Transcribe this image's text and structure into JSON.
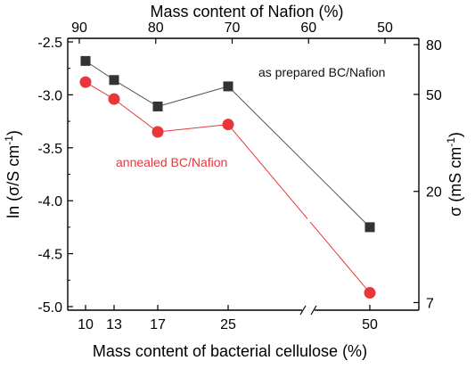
{
  "chart_data": {
    "type": "line",
    "top_axis_title": "Mass content of Nafion (%)",
    "bottom_axis_title": "Mass content of bacterial cellulose (%)",
    "left_axis_title_prefix": "ln (",
    "left_axis_title_sigma": "σ",
    "left_axis_title_unit": "/S cm",
    "left_axis_title_exp": "-1",
    "left_axis_title_suffix": ")",
    "right_axis_title_prefix": "σ (mS cm",
    "right_axis_title_exp": "-1",
    "right_axis_title_suffix": ")",
    "categories": [
      "10",
      "13",
      "17",
      "25",
      "50"
    ],
    "x_nafion": [
      90,
      87,
      83,
      75,
      50
    ],
    "top_ticks": [
      "90",
      "80",
      "70",
      "60",
      "50"
    ],
    "top_tick_values": [
      90,
      80,
      70,
      60,
      50
    ],
    "ylim": [
      -5.0,
      -2.5
    ],
    "y_ticks": [
      -2.5,
      -3.0,
      -3.5,
      -4.0,
      -4.5,
      -5.0
    ],
    "y_tick_labels": [
      "-2.5",
      "-3.0",
      "-3.5",
      "-4.0",
      "-4.5",
      "-5.0"
    ],
    "right_ticks": [
      "80",
      "50",
      "20",
      "7"
    ],
    "right_tick_values": [
      80,
      50,
      20,
      7
    ],
    "axis_break": "between 25 and 50",
    "grid": false,
    "series": [
      {
        "name": "as prepared BC/Nafion",
        "color": "#333333",
        "line_color": "#555555",
        "marker": "square",
        "values": [
          -2.68,
          -2.86,
          -3.11,
          -2.92,
          -4.25
        ]
      },
      {
        "name": "annealed BC/Nafion",
        "color": "#e8363b",
        "line_color": "#e8363b",
        "marker": "circle",
        "values": [
          -2.88,
          -3.04,
          -3.35,
          -3.28,
          -4.87
        ]
      }
    ]
  }
}
